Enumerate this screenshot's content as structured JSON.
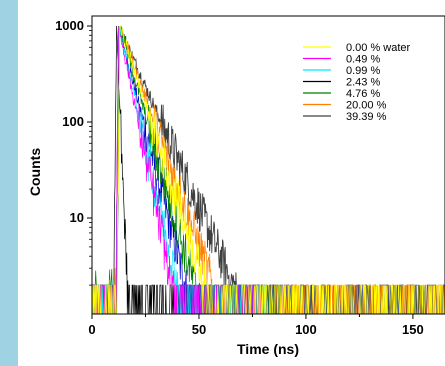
{
  "chart_data": {
    "type": "line",
    "xlabel": "Time (ns)",
    "ylabel": "Counts",
    "xlim": [
      0,
      165
    ],
    "ylim": [
      1,
      1000
    ],
    "yscale": "log",
    "x_ticks": [
      0,
      50,
      100,
      150
    ],
    "y_ticks": [
      10,
      100,
      1000
    ],
    "grid": false,
    "legend_position": "top-right",
    "series": [
      {
        "name": "0.00 % water",
        "color": "#ffff00",
        "peak_x": 13,
        "decay_ns": 6.4,
        "x": [
          13,
          20,
          25,
          30,
          35,
          40,
          45,
          50
        ],
        "y": [
          1000,
          335,
          155,
          70,
          32,
          15,
          7,
          3
        ]
      },
      {
        "name": "0.49 %",
        "color": "#ff00ff",
        "peak_x": 12.5,
        "decay_ns": 4.0,
        "x": [
          12.5,
          17,
          20,
          25,
          30,
          35
        ],
        "y": [
          980,
          320,
          155,
          45,
          13,
          4
        ]
      },
      {
        "name": "0.99 %",
        "color": "#00e5ff",
        "peak_x": 12.5,
        "decay_ns": 4.4,
        "x": [
          12.5,
          17,
          20,
          25,
          30,
          35
        ],
        "y": [
          950,
          340,
          170,
          55,
          18,
          6
        ]
      },
      {
        "name": "2.43 %",
        "color": "#000000",
        "peak_x": 11.5,
        "decay_ns": 0.8,
        "x": [
          11.5,
          12.5,
          13.5,
          14.5,
          16
        ],
        "y": [
          330,
          100,
          28,
          8,
          1.5
        ]
      },
      {
        "name": "4.76 %",
        "color": "#008000",
        "peak_x": 13,
        "decay_ns": 5.6,
        "x": [
          13,
          20,
          25,
          30,
          35,
          40,
          45
        ],
        "y": [
          1000,
          290,
          120,
          50,
          20,
          8,
          3
        ]
      },
      {
        "name": "20.00 %",
        "color": "#ff8000",
        "peak_x": 13,
        "decay_ns": 7.0,
        "x": [
          13,
          20,
          25,
          30,
          35,
          40,
          45,
          50
        ],
        "y": [
          1000,
          360,
          180,
          90,
          45,
          22,
          11,
          5
        ]
      },
      {
        "name": "39.39 %",
        "color": "#404040",
        "peak_x": 12.5,
        "decay_ns": 8.6,
        "x": [
          12.5,
          20,
          30,
          40,
          50,
          60
        ],
        "y": [
          1000,
          420,
          130,
          40,
          13,
          4
        ]
      },
      {
        "name": "",
        "color": "#0000cc",
        "peak_x": 12.5,
        "decay_ns": 5.0,
        "x": [
          12.5,
          20,
          25,
          30,
          35,
          40
        ],
        "y": [
          980,
          240,
          90,
          35,
          13,
          5
        ]
      }
    ]
  }
}
